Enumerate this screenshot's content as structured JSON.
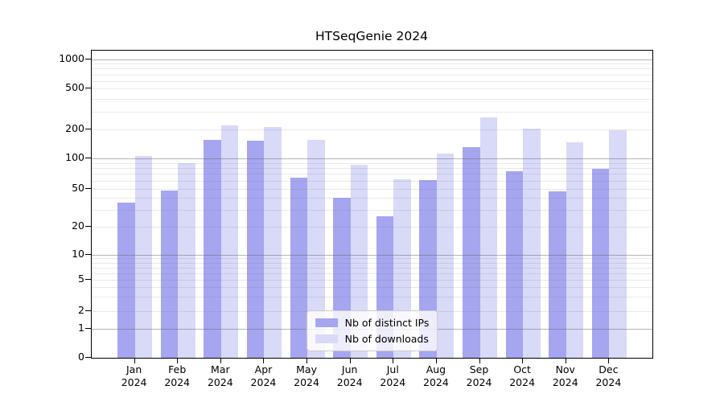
{
  "title": "HTSeqGenie 2024",
  "chart_data": {
    "type": "bar",
    "title": "HTSeqGenie 2024",
    "categories": [
      "Jan 2024",
      "Feb 2024",
      "Mar 2024",
      "Apr 2024",
      "May 2024",
      "Jun 2024",
      "Jul 2024",
      "Aug 2024",
      "Sep 2024",
      "Oct 2024",
      "Nov 2024",
      "Dec 2024"
    ],
    "series": [
      {
        "name": "Nb of distinct IPs",
        "color": "#a5a5f0",
        "values": [
          36,
          48,
          155,
          152,
          65,
          40,
          26,
          61,
          130,
          74,
          47,
          78
        ]
      },
      {
        "name": "Nb of downloads",
        "color": "#d9d9f8",
        "values": [
          105,
          90,
          220,
          210,
          155,
          86,
          62,
          112,
          260,
          205,
          147,
          198
        ]
      }
    ],
    "xlabel": "",
    "ylabel": "",
    "yscale": "symlog",
    "yticks": [
      0,
      1,
      2,
      5,
      10,
      20,
      50,
      100,
      200,
      500,
      1000
    ],
    "ylim": [
      0,
      1000
    ],
    "grid": "horizontal major and minor gridlines, drawn above bars",
    "grid_major_color": "#b3b3b3",
    "grid_minor_color": "#e8e8e8",
    "legend_position": "lower center",
    "bar_group": "two bars per month, distinct-IPs bar left of tick, downloads bar right of tick"
  }
}
